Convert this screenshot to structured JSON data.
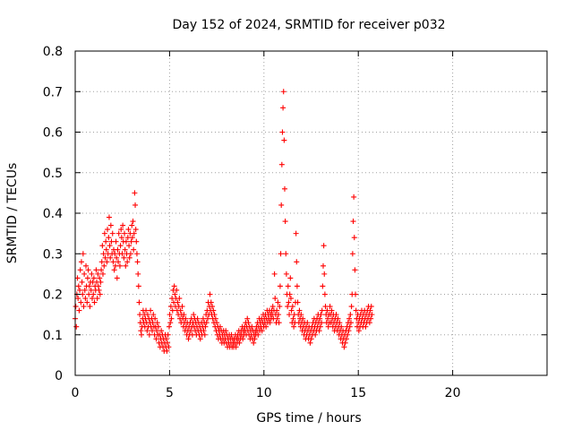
{
  "chart_data": {
    "type": "scatter",
    "title": "Day 152 of 2024, SRMTID for receiver p032",
    "xlabel": "GPS time / hours",
    "ylabel": "SRMTID / TECUs",
    "xlim": [
      0,
      25
    ],
    "ylim": [
      0,
      0.8
    ],
    "xticks": [
      0,
      5,
      10,
      15,
      20
    ],
    "xtick_labels": [
      "0",
      "5",
      "10",
      "15",
      "20"
    ],
    "yticks": [
      0,
      0.1,
      0.2,
      0.3,
      0.4,
      0.5,
      0.6,
      0.7,
      0.8
    ],
    "ytick_labels": [
      "0",
      "0.1",
      "0.2",
      "0.3",
      "0.4",
      "0.5",
      "0.6",
      "0.7",
      "0.8"
    ],
    "grid": true,
    "marker": "plus",
    "series": [
      {
        "name": "SRMTID",
        "color": "#ff0000",
        "sample_interval_hours": 0.03,
        "x_start": 0.0,
        "values": [
          0.14,
          0.17,
          0.12,
          0.2,
          0.24,
          0.19,
          0.22,
          0.16,
          0.21,
          0.26,
          0.18,
          0.28,
          0.23,
          0.2,
          0.3,
          0.17,
          0.25,
          0.21,
          0.19,
          0.27,
          0.22,
          0.18,
          0.24,
          0.26,
          0.2,
          0.22,
          0.17,
          0.23,
          0.21,
          0.25,
          0.19,
          0.23,
          0.2,
          0.24,
          0.18,
          0.22,
          0.21,
          0.26,
          0.23,
          0.19,
          0.25,
          0.22,
          0.21,
          0.24,
          0.2,
          0.23,
          0.26,
          0.28,
          0.32,
          0.25,
          0.3,
          0.27,
          0.35,
          0.29,
          0.33,
          0.31,
          0.28,
          0.36,
          0.3,
          0.34,
          0.39,
          0.32,
          0.29,
          0.37,
          0.33,
          0.3,
          0.35,
          0.28,
          0.31,
          0.26,
          0.3,
          0.27,
          0.33,
          0.29,
          0.24,
          0.31,
          0.28,
          0.35,
          0.3,
          0.27,
          0.32,
          0.36,
          0.34,
          0.3,
          0.37,
          0.33,
          0.29,
          0.35,
          0.31,
          0.27,
          0.33,
          0.3,
          0.28,
          0.34,
          0.36,
          0.32,
          0.29,
          0.35,
          0.3,
          0.33,
          0.37,
          0.34,
          0.38,
          0.31,
          0.35,
          0.45,
          0.42,
          0.36,
          0.33,
          0.3,
          0.28,
          0.25,
          0.22,
          0.18,
          0.15,
          0.13,
          0.11,
          0.1,
          0.12,
          0.14,
          0.16,
          0.13,
          0.15,
          0.12,
          0.14,
          0.16,
          0.13,
          0.11,
          0.15,
          0.12,
          0.14,
          0.1,
          0.13,
          0.16,
          0.12,
          0.14,
          0.11,
          0.13,
          0.15,
          0.12,
          0.1,
          0.14,
          0.12,
          0.09,
          0.11,
          0.13,
          0.1,
          0.12,
          0.08,
          0.1,
          0.07,
          0.09,
          0.11,
          0.08,
          0.1,
          0.07,
          0.09,
          0.06,
          0.08,
          0.1,
          0.07,
          0.09,
          0.06,
          0.08,
          0.1,
          0.07,
          0.12,
          0.15,
          0.13,
          0.17,
          0.14,
          0.19,
          0.16,
          0.21,
          0.18,
          0.22,
          0.2,
          0.17,
          0.19,
          0.21,
          0.16,
          0.18,
          0.15,
          0.17,
          0.19,
          0.14,
          0.16,
          0.13,
          0.15,
          0.17,
          0.14,
          0.12,
          0.15,
          0.13,
          0.11,
          0.14,
          0.12,
          0.1,
          0.13,
          0.11,
          0.09,
          0.12,
          0.1,
          0.13,
          0.11,
          0.14,
          0.12,
          0.1,
          0.13,
          0.15,
          0.12,
          0.14,
          0.11,
          0.13,
          0.1,
          0.12,
          0.14,
          0.11,
          0.13,
          0.1,
          0.12,
          0.09,
          0.11,
          0.13,
          0.1,
          0.12,
          0.14,
          0.11,
          0.13,
          0.1,
          0.12,
          0.15,
          0.13,
          0.16,
          0.14,
          0.18,
          0.15,
          0.17,
          0.2,
          0.16,
          0.18,
          0.15,
          0.17,
          0.14,
          0.16,
          0.13,
          0.15,
          0.12,
          0.14,
          0.11,
          0.13,
          0.1,
          0.12,
          0.09,
          0.11,
          0.1,
          0.12,
          0.09,
          0.11,
          0.08,
          0.1,
          0.09,
          0.11,
          0.08,
          0.1,
          0.09,
          0.11,
          0.08,
          0.1,
          0.07,
          0.09,
          0.08,
          0.1,
          0.07,
          0.09,
          0.08,
          0.1,
          0.07,
          0.09,
          0.08,
          0.07,
          0.09,
          0.08,
          0.1,
          0.07,
          0.09,
          0.08,
          0.1,
          0.09,
          0.11,
          0.08,
          0.1,
          0.09,
          0.11,
          0.1,
          0.12,
          0.09,
          0.11,
          0.1,
          0.12,
          0.11,
          0.13,
          0.1,
          0.12,
          0.14,
          0.11,
          0.13,
          0.1,
          0.12,
          0.09,
          0.11,
          0.1,
          0.12,
          0.09,
          0.11,
          0.08,
          0.1,
          0.09,
          0.11,
          0.1,
          0.12,
          0.11,
          0.13,
          0.1,
          0.12,
          0.14,
          0.11,
          0.13,
          0.12,
          0.14,
          0.11,
          0.13,
          0.15,
          0.12,
          0.14,
          0.13,
          0.15,
          0.12,
          0.14,
          0.16,
          0.13,
          0.15,
          0.14,
          0.16,
          0.13,
          0.15,
          0.14,
          0.16,
          0.15,
          0.17,
          0.14,
          0.16,
          0.25,
          0.19,
          0.15,
          0.13,
          0.16,
          0.14,
          0.18,
          0.15,
          0.13,
          0.17,
          0.22,
          0.3,
          0.42,
          0.52,
          0.6,
          0.66,
          0.7,
          0.58,
          0.46,
          0.38,
          0.3,
          0.25,
          0.2,
          0.17,
          0.22,
          0.18,
          0.15,
          0.2,
          0.24,
          0.19,
          0.16,
          0.13,
          0.17,
          0.14,
          0.12,
          0.15,
          0.13,
          0.18,
          0.35,
          0.28,
          0.22,
          0.18,
          0.15,
          0.13,
          0.16,
          0.14,
          0.12,
          0.15,
          0.13,
          0.11,
          0.14,
          0.12,
          0.1,
          0.13,
          0.11,
          0.09,
          0.12,
          0.1,
          0.13,
          0.11,
          0.09,
          0.12,
          0.1,
          0.08,
          0.11,
          0.09,
          0.12,
          0.1,
          0.13,
          0.11,
          0.14,
          0.12,
          0.1,
          0.13,
          0.11,
          0.14,
          0.12,
          0.15,
          0.13,
          0.11,
          0.14,
          0.12,
          0.15,
          0.13,
          0.16,
          0.22,
          0.27,
          0.32,
          0.25,
          0.2,
          0.17,
          0.15,
          0.13,
          0.16,
          0.14,
          0.12,
          0.15,
          0.13,
          0.17,
          0.15,
          0.13,
          0.16,
          0.14,
          0.12,
          0.15,
          0.13,
          0.11,
          0.14,
          0.12,
          0.15,
          0.13,
          0.11,
          0.14,
          0.12,
          0.1,
          0.13,
          0.11,
          0.09,
          0.12,
          0.1,
          0.08,
          0.11,
          0.09,
          0.07,
          0.1,
          0.08,
          0.11,
          0.09,
          0.12,
          0.1,
          0.13,
          0.11,
          0.14,
          0.12,
          0.15,
          0.13,
          0.17,
          0.2,
          0.3,
          0.38,
          0.44,
          0.34,
          0.26,
          0.2,
          0.16,
          0.14,
          0.12,
          0.15,
          0.13,
          0.11,
          0.14,
          0.12,
          0.15,
          0.13,
          0.16,
          0.14,
          0.12,
          0.15,
          0.13,
          0.16,
          0.14,
          0.12,
          0.15,
          0.13,
          0.16,
          0.14,
          0.17,
          0.15,
          0.13,
          0.16,
          0.14,
          0.17,
          0.15
        ]
      }
    ]
  }
}
